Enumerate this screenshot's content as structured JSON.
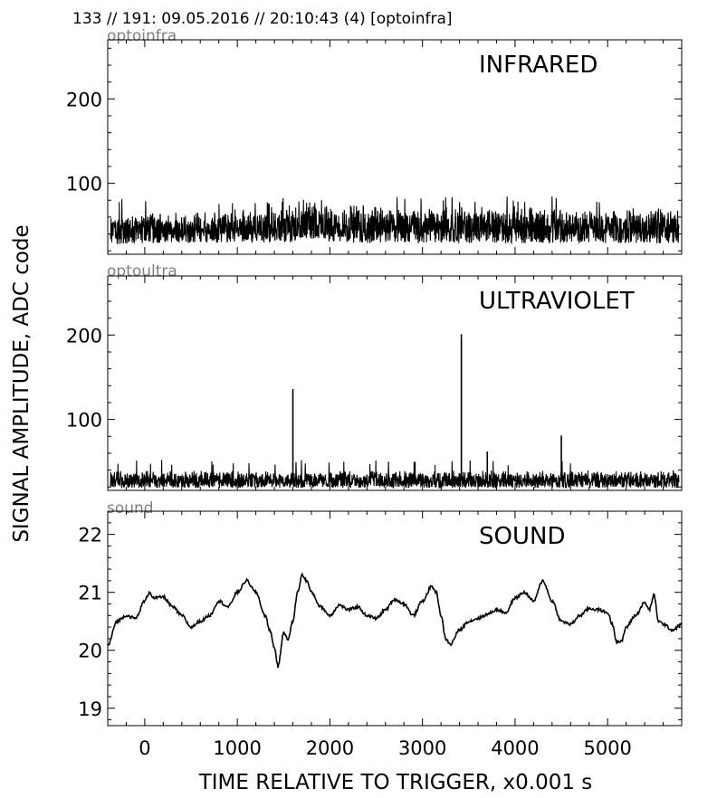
{
  "header": "133 // 191:   09.05.2016 // 20:10:43 (4)  [optoinfra]",
  "ylabel": "SIGNAL AMPLITUDE,  ADC code",
  "xlabel": "TIME RELATIVE TO TRIGGER,   x0.001 s",
  "colors": {
    "trace": "#000000",
    "source_label": "#808080",
    "axes": "#000000"
  },
  "chart_data": [
    {
      "type": "line",
      "source": "optoinfra",
      "title": "INFRARED",
      "xlim": [
        -400,
        5800
      ],
      "ylim": [
        16,
        270
      ],
      "yticks": [
        100,
        200
      ],
      "xticks": [
        0,
        1000,
        2000,
        3000,
        4000,
        5000
      ],
      "show_x_ticklabels": false,
      "grid": false,
      "noise": {
        "baseline": 46,
        "lower": 28,
        "upper_typical": 65,
        "upper_peak": 85
      },
      "envelope": [
        {
          "x": -400,
          "upper": 62,
          "lower": 28
        },
        {
          "x": 1000,
          "upper": 72,
          "lower": 30
        },
        {
          "x": 1600,
          "upper": 76,
          "lower": 30
        },
        {
          "x": 1700,
          "upper": 84,
          "lower": 36
        },
        {
          "x": 2000,
          "upper": 78,
          "lower": 30
        },
        {
          "x": 3000,
          "upper": 74,
          "lower": 29
        },
        {
          "x": 5800,
          "upper": 72,
          "lower": 29
        }
      ]
    },
    {
      "type": "line",
      "source": "optoultra",
      "title": "ULTRAVIOLET",
      "xlim": [
        -400,
        5800
      ],
      "ylim": [
        16,
        270
      ],
      "yticks": [
        100,
        200
      ],
      "xticks": [
        0,
        1000,
        2000,
        3000,
        4000,
        5000
      ],
      "show_x_ticklabels": false,
      "grid": false,
      "noise": {
        "baseline": 27,
        "lower": 19,
        "upper_typical": 40,
        "upper_peak": 52
      },
      "spikes": [
        {
          "x": 1600,
          "y": 136
        },
        {
          "x": 3420,
          "y": 201
        },
        {
          "x": 3700,
          "y": 62
        },
        {
          "x": 4500,
          "y": 81
        }
      ]
    },
    {
      "type": "line",
      "source": "sound",
      "title": "SOUND",
      "xlim": [
        -400,
        5800
      ],
      "ylim": [
        18.7,
        22.4
      ],
      "yticks": [
        19,
        20,
        21,
        22
      ],
      "xticks": [
        0,
        1000,
        2000,
        3000,
        4000,
        5000
      ],
      "show_x_ticklabels": true,
      "grid": false,
      "x": [
        -400,
        -300,
        -200,
        -100,
        0,
        50,
        100,
        200,
        300,
        400,
        500,
        600,
        700,
        800,
        900,
        1000,
        1100,
        1200,
        1300,
        1350,
        1400,
        1440,
        1500,
        1550,
        1600,
        1650,
        1700,
        1750,
        1800,
        1900,
        2000,
        2100,
        2200,
        2300,
        2400,
        2500,
        2600,
        2700,
        2800,
        2900,
        3000,
        3100,
        3150,
        3200,
        3250,
        3300,
        3400,
        3500,
        3600,
        3700,
        3800,
        3900,
        4000,
        4100,
        4200,
        4300,
        4400,
        4500,
        4600,
        4700,
        4800,
        4900,
        5000,
        5050,
        5100,
        5150,
        5200,
        5300,
        5400,
        5450,
        5500,
        5550,
        5600,
        5700,
        5800
      ],
      "y": [
        20.08,
        20.5,
        20.6,
        20.55,
        20.85,
        21.0,
        20.9,
        20.92,
        20.75,
        20.6,
        20.4,
        20.5,
        20.6,
        20.85,
        20.75,
        21.0,
        21.2,
        21.0,
        20.6,
        20.35,
        20.05,
        19.72,
        20.3,
        20.2,
        20.5,
        21.0,
        21.3,
        21.2,
        21.0,
        20.75,
        20.6,
        20.78,
        20.7,
        20.75,
        20.6,
        20.55,
        20.7,
        20.88,
        20.8,
        20.6,
        20.85,
        21.1,
        21.0,
        20.6,
        20.2,
        20.1,
        20.35,
        20.5,
        20.55,
        20.62,
        20.7,
        20.65,
        20.9,
        21.0,
        20.85,
        21.2,
        20.85,
        20.5,
        20.45,
        20.6,
        20.72,
        20.7,
        20.65,
        20.45,
        20.15,
        20.15,
        20.4,
        20.6,
        20.82,
        20.7,
        20.95,
        20.5,
        20.45,
        20.35,
        20.45
      ]
    }
  ]
}
